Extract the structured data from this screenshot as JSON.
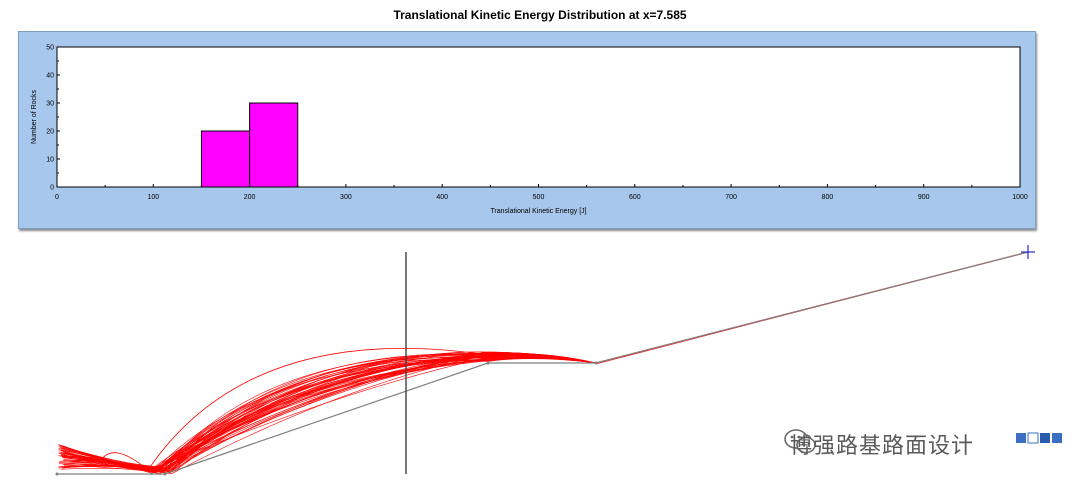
{
  "chart_data": {
    "type": "bar",
    "title": "Translational Kinetic Energy Distribution at x=7.585",
    "xlabel": "Translational Kinetic Energy [J]",
    "ylabel": "Number of Rocks",
    "xlim": [
      0,
      1000
    ],
    "ylim": [
      0,
      50
    ],
    "xticks": [
      "0",
      "100",
      "200",
      "300",
      "400",
      "500",
      "600",
      "700",
      "800",
      "900",
      "1000"
    ],
    "yticks": [
      "0",
      "10",
      "20",
      "30",
      "40",
      "50"
    ],
    "bins": [
      {
        "x0": 150,
        "x1": 200,
        "count": 20
      },
      {
        "x0": 200,
        "x1": 250,
        "count": 30
      }
    ],
    "bar_color": "#ff00ff",
    "grid": false
  },
  "watermark": "博强路基路面设计",
  "colors": {
    "trajectory": "#ff0000",
    "slope": "#808080",
    "section_line": "#404040",
    "panel": "#a7c7ec"
  }
}
